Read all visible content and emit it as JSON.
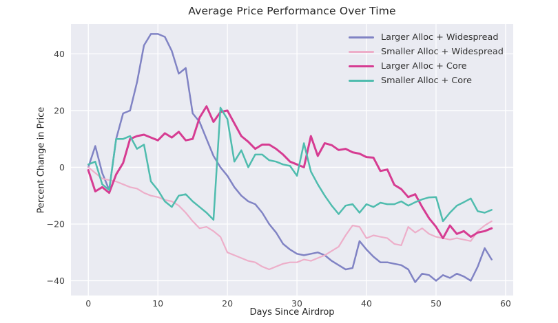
{
  "chart_data": {
    "type": "line",
    "title": "Average Price Performance Over Time",
    "xlabel": "Days Since Airdrop",
    "ylabel": "Percent Change in Price",
    "xlim": [
      -2.5,
      61.1
    ],
    "ylim": [
      -45.2,
      50.5
    ],
    "xticks": [
      0,
      10,
      20,
      30,
      40,
      50,
      60
    ],
    "xticklabels": [
      "0",
      "10",
      "20",
      "30",
      "40",
      "50",
      "60"
    ],
    "yticks": [
      -40,
      -20,
      0,
      20,
      40
    ],
    "yticklabels": [
      "−40",
      "−20",
      "0",
      "20",
      "40"
    ],
    "grid": true,
    "legend_position": "upper right",
    "plot_bg": "#eaebf2",
    "grid_color": "#ffffff",
    "tick_color": "#444444",
    "x": [
      0,
      1,
      2,
      3,
      4,
      5,
      6,
      7,
      8,
      9,
      10,
      11,
      12,
      13,
      14,
      15,
      16,
      17,
      18,
      19,
      20,
      21,
      22,
      23,
      24,
      25,
      26,
      27,
      28,
      29,
      30,
      31,
      32,
      33,
      34,
      35,
      36,
      37,
      38,
      39,
      40,
      41,
      42,
      43,
      44,
      45,
      46,
      47,
      48,
      49,
      50,
      51,
      52,
      53,
      54,
      55,
      56,
      57,
      58
    ],
    "series": [
      {
        "name": "Larger Alloc + Widespread",
        "color": "#8083c4",
        "width": 2.5,
        "values": [
          0,
          7.5,
          -2,
          -8,
          10,
          19,
          20,
          30,
          43,
          47,
          47,
          46,
          41,
          33,
          35,
          19,
          16,
          10,
          4,
          0,
          -3,
          -7,
          -10,
          -12,
          -13,
          -16,
          -20,
          -23,
          -27,
          -29,
          -30.5,
          -31,
          -30.5,
          -30,
          -31,
          -33,
          -34.5,
          -36,
          -35.5,
          -26,
          -29,
          -31.5,
          -33.5,
          -33.5,
          -34,
          -34.5,
          -36,
          -40.5,
          -37.5,
          -38,
          -40,
          -38,
          -39,
          -37.5,
          -38.5,
          -40,
          -35,
          -28.5,
          -32.5
        ]
      },
      {
        "name": "Smaller Alloc + Widespread",
        "color": "#edaec9",
        "width": 2.2,
        "values": [
          0,
          -2,
          -4,
          -4.5,
          -5,
          -6,
          -7,
          -7.5,
          -9,
          -10,
          -10.5,
          -11.5,
          -12,
          -13.5,
          -16,
          -19,
          -21.5,
          -21,
          -22.5,
          -24.5,
          -30,
          -31,
          -32,
          -33,
          -33.5,
          -35,
          -36,
          -35,
          -34,
          -33.5,
          -33.5,
          -32.5,
          -33,
          -32,
          -31,
          -29.5,
          -28,
          -24,
          -20.5,
          -21,
          -25,
          -24,
          -24.5,
          -25,
          -27,
          -27.5,
          -21,
          -23,
          -21.5,
          -23.5,
          -24.5,
          -25,
          -25.5,
          -25,
          -25.5,
          -26,
          -22.5,
          -20.5,
          -19
        ]
      },
      {
        "name": "Larger Alloc + Core",
        "color": "#d63c92",
        "width": 3,
        "values": [
          -1,
          -8.5,
          -7,
          -9,
          -2.5,
          1.5,
          10,
          11,
          11.5,
          10.5,
          9.5,
          12,
          10.5,
          12.5,
          9.5,
          10,
          17.5,
          21.5,
          16,
          19.5,
          20,
          15.5,
          11,
          9,
          6.5,
          8,
          8,
          6.5,
          4.5,
          2,
          1,
          0,
          11,
          4,
          8.5,
          7.8,
          6.1,
          6.5,
          5.3,
          4.8,
          3.6,
          3.4,
          -1.3,
          -0.8,
          -6.2,
          -7.7,
          -10.5,
          -9.5,
          -14,
          -18,
          -21,
          -25,
          -20.5,
          -23.5,
          -22.5,
          -24.5,
          -23,
          -22.5,
          -21.5
        ]
      },
      {
        "name": "Smaller Alloc + Core",
        "color": "#4fbcae",
        "width": 2.5,
        "values": [
          1,
          2,
          -6,
          -8,
          10,
          10,
          11,
          6.5,
          8,
          -5,
          -8,
          -12,
          -14,
          -10,
          -9.5,
          -12,
          -14,
          -16,
          -18.5,
          21,
          17,
          2,
          6,
          0,
          4.5,
          4.5,
          2.5,
          2,
          1,
          0.5,
          -3,
          8.5,
          -1.5,
          -6,
          -10,
          -13.5,
          -16.5,
          -13.5,
          -13,
          -16,
          -13,
          -14,
          -12.5,
          -13,
          -13,
          -12,
          -13.5,
          -12.3,
          -11.3,
          -10.6,
          -10.5,
          -19,
          -16,
          -13.5,
          -12.3,
          -11,
          -15.5,
          -16,
          -15
        ]
      }
    ]
  }
}
